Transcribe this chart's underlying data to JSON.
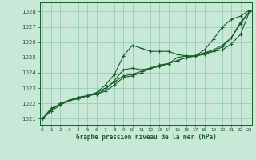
{
  "title": "Graphe pression niveau de la mer (hPa)",
  "bg_color": "#c8e8d8",
  "grid_color": "#99ccbb",
  "line_color": "#1a5c2a",
  "xlim": [
    -0.3,
    23.3
  ],
  "ylim": [
    1020.6,
    1028.6
  ],
  "yticks": [
    1021,
    1022,
    1023,
    1024,
    1025,
    1026,
    1027,
    1028
  ],
  "xticks": [
    0,
    1,
    2,
    3,
    4,
    5,
    6,
    7,
    8,
    9,
    10,
    11,
    12,
    13,
    14,
    15,
    16,
    17,
    18,
    19,
    20,
    21,
    22,
    23
  ],
  "series": [
    {
      "x": [
        0,
        1,
        2,
        3,
        4,
        5,
        6,
        7,
        8,
        9,
        10,
        11,
        12,
        13,
        14,
        15,
        16,
        17,
        18,
        19,
        20,
        21,
        22,
        23
      ],
      "y": [
        1021.0,
        1021.7,
        1021.9,
        1022.2,
        1022.4,
        1022.5,
        1022.7,
        1023.2,
        1023.9,
        1025.1,
        1025.8,
        1025.6,
        1025.4,
        1025.4,
        1025.4,
        1025.2,
        1025.1,
        1025.1,
        1025.5,
        1026.2,
        1027.0,
        1027.5,
        1027.7,
        1028.1
      ]
    },
    {
      "x": [
        0,
        1,
        2,
        3,
        4,
        5,
        6,
        7,
        8,
        9,
        10,
        11,
        12,
        13,
        14,
        15,
        16,
        17,
        18,
        19,
        20,
        21,
        22,
        23
      ],
      "y": [
        1021.0,
        1021.5,
        1021.9,
        1022.2,
        1022.3,
        1022.5,
        1022.6,
        1022.9,
        1023.5,
        1024.2,
        1024.3,
        1024.2,
        1024.3,
        1024.5,
        1024.6,
        1025.0,
        1025.1,
        1025.1,
        1025.3,
        1025.4,
        1025.5,
        1025.9,
        1026.5,
        1028.0
      ]
    },
    {
      "x": [
        0,
        1,
        2,
        3,
        4,
        5,
        6,
        7,
        8,
        9,
        10,
        11,
        12,
        13,
        14,
        15,
        16,
        17,
        18,
        19,
        20,
        21,
        22,
        23
      ],
      "y": [
        1021.0,
        1021.6,
        1022.0,
        1022.2,
        1022.4,
        1022.5,
        1022.6,
        1022.8,
        1023.2,
        1023.7,
        1023.8,
        1024.0,
        1024.3,
        1024.5,
        1024.6,
        1024.8,
        1025.0,
        1025.1,
        1025.2,
        1025.4,
        1025.7,
        1026.3,
        1027.2,
        1028.0
      ]
    },
    {
      "x": [
        0,
        1,
        2,
        3,
        4,
        5,
        6,
        7,
        8,
        9,
        10,
        11,
        12,
        13,
        14,
        15,
        16,
        17,
        18,
        19,
        20,
        21,
        22,
        23
      ],
      "y": [
        1021.0,
        1021.6,
        1022.0,
        1022.2,
        1022.3,
        1022.5,
        1022.7,
        1023.0,
        1023.4,
        1023.8,
        1023.9,
        1024.1,
        1024.3,
        1024.4,
        1024.6,
        1024.8,
        1025.0,
        1025.1,
        1025.3,
        1025.5,
        1025.8,
        1026.3,
        1027.3,
        1028.0
      ]
    }
  ]
}
